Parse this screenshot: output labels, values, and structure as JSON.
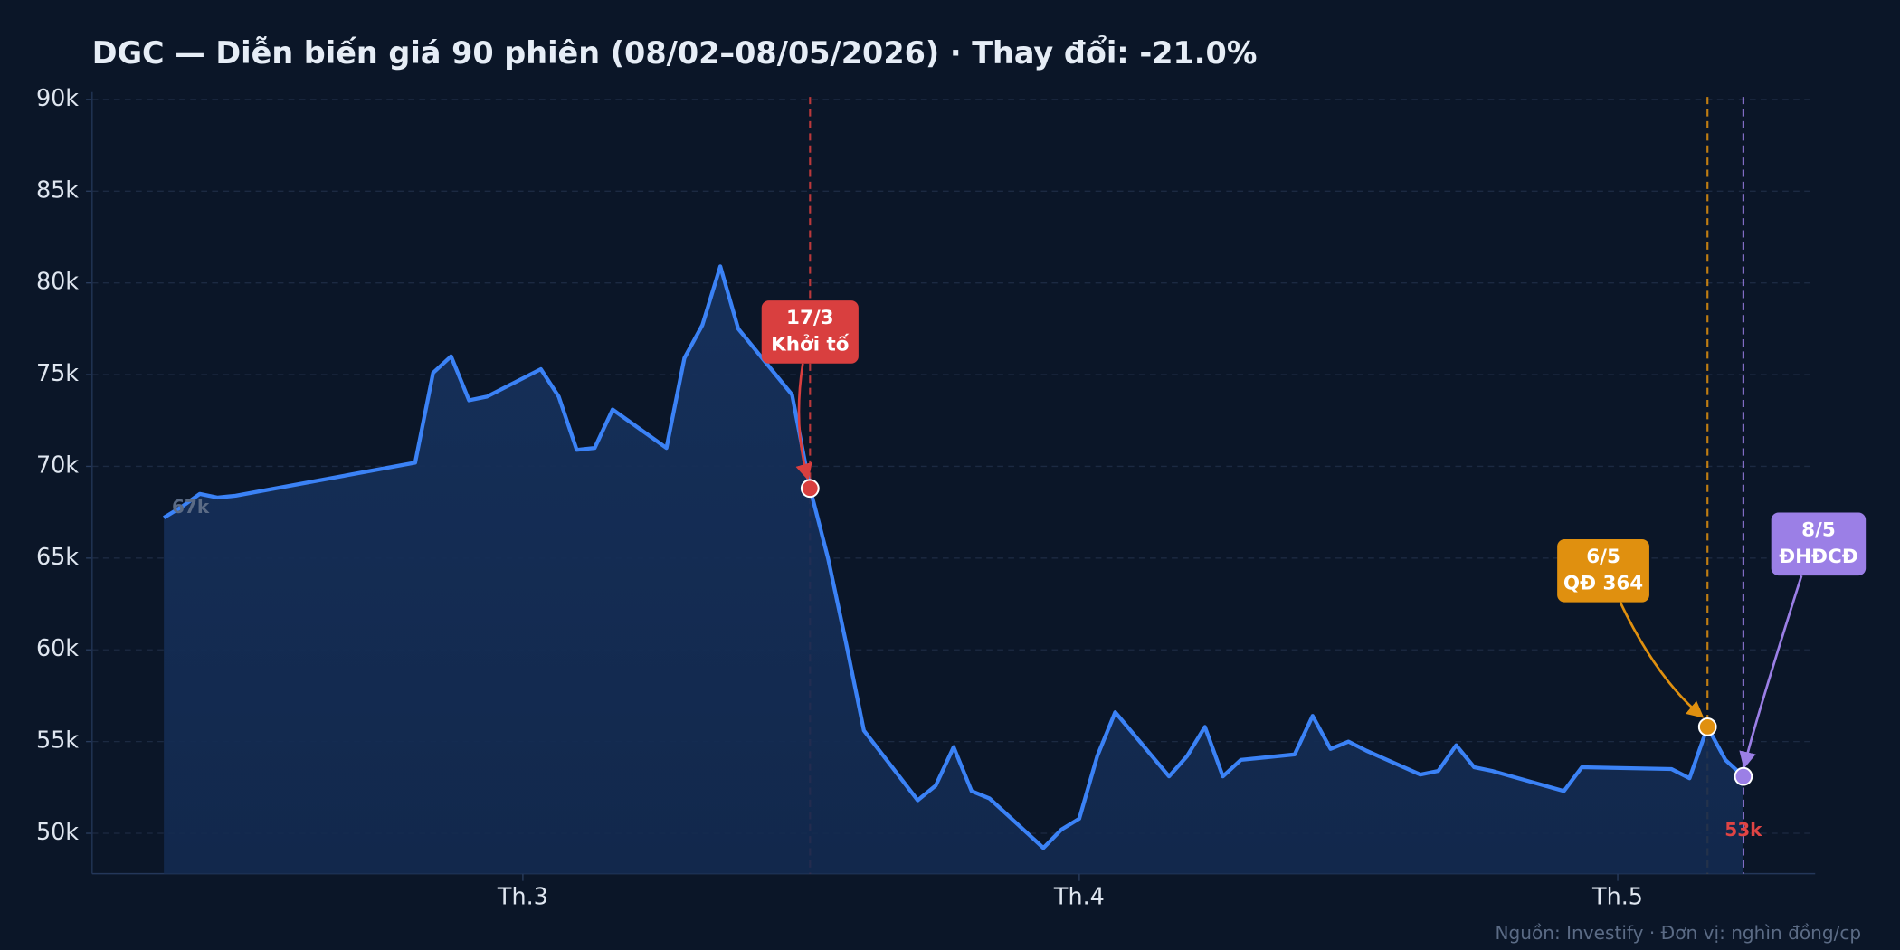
{
  "chart_data": {
    "type": "line",
    "title": "DGC — Diễn biến giá 90 phiên (08/02–08/05/2026)  ·  Thay đổi: -21.0%",
    "source": "Nguồn: Investify · Đơn vị: nghìn đồng/cp",
    "color": "#3b82f6",
    "grid": true,
    "x": [
      "2026-02-09",
      "2026-02-10",
      "2026-02-11",
      "2026-02-12",
      "2026-02-13",
      "2026-02-23",
      "2026-02-24",
      "2026-02-25",
      "2026-02-26",
      "2026-02-27",
      "2026-03-02",
      "2026-03-03",
      "2026-03-04",
      "2026-03-05",
      "2026-03-06",
      "2026-03-09",
      "2026-03-10",
      "2026-03-11",
      "2026-03-12",
      "2026-03-13",
      "2026-03-16",
      "2026-03-17",
      "2026-03-18",
      "2026-03-19",
      "2026-03-20",
      "2026-03-23",
      "2026-03-24",
      "2026-03-25",
      "2026-03-26",
      "2026-03-27",
      "2026-03-30",
      "2026-03-31",
      "2026-04-01",
      "2026-04-02",
      "2026-04-03",
      "2026-04-06",
      "2026-04-07",
      "2026-04-08",
      "2026-04-09",
      "2026-04-10",
      "2026-04-13",
      "2026-04-14",
      "2026-04-15",
      "2026-04-16",
      "2026-04-17",
      "2026-04-20",
      "2026-04-21",
      "2026-04-22",
      "2026-04-23",
      "2026-04-24",
      "2026-04-28",
      "2026-04-29",
      "2026-05-04",
      "2026-05-05",
      "2026-05-06",
      "2026-05-07",
      "2026-05-08"
    ],
    "values": [
      67.2,
      67.8,
      68.5,
      68.3,
      68.4,
      70.2,
      75.1,
      76.0,
      73.6,
      73.8,
      75.3,
      73.8,
      70.9,
      71.0,
      73.1,
      71.0,
      75.9,
      77.7,
      80.9,
      77.5,
      73.9,
      68.8,
      65.0,
      60.4,
      55.6,
      51.8,
      52.6,
      54.7,
      52.3,
      51.9,
      49.2,
      50.2,
      50.8,
      54.2,
      56.6,
      53.1,
      54.2,
      55.8,
      53.1,
      54.0,
      54.3,
      56.4,
      54.6,
      55.0,
      54.5,
      53.2,
      53.4,
      54.8,
      53.6,
      53.4,
      52.3,
      53.6,
      53.5,
      53.0,
      55.8,
      54.0,
      53.1
    ],
    "xlim": [
      "2026-02-05",
      "2026-05-12"
    ],
    "xticks": [
      {
        "value": "2026-03-01",
        "label": "Th.3"
      },
      {
        "value": "2026-04-01",
        "label": "Th.4"
      },
      {
        "value": "2026-05-01",
        "label": "Th.5"
      }
    ],
    "ylim": [
      47.8,
      90.4
    ],
    "yticks": [
      {
        "value": 50,
        "label": "50k"
      },
      {
        "value": 55,
        "label": "55k"
      },
      {
        "value": 60,
        "label": "60k"
      },
      {
        "value": 65,
        "label": "65k"
      },
      {
        "value": 70,
        "label": "70k"
      },
      {
        "value": 75,
        "label": "75k"
      },
      {
        "value": 80,
        "label": "80k"
      },
      {
        "value": 85,
        "label": "85k"
      },
      {
        "value": 90,
        "label": "90k"
      }
    ],
    "point_labels": [
      {
        "x": "2026-02-09",
        "text": "67k",
        "color": "#5b6b85"
      },
      {
        "x": "2026-05-08",
        "text": "53k",
        "color": "#e04444"
      }
    ],
    "events": [
      {
        "x": "2026-03-17",
        "label": "17/3",
        "text": "Khởi tố",
        "color": "#d93f3f"
      },
      {
        "x": "2026-05-06",
        "label": "6/5",
        "text": "QĐ 364",
        "color": "#e0900f"
      },
      {
        "x": "2026-05-08",
        "label": "8/5",
        "text": "ĐHĐCĐ",
        "color": "#9b7fe6"
      }
    ]
  }
}
